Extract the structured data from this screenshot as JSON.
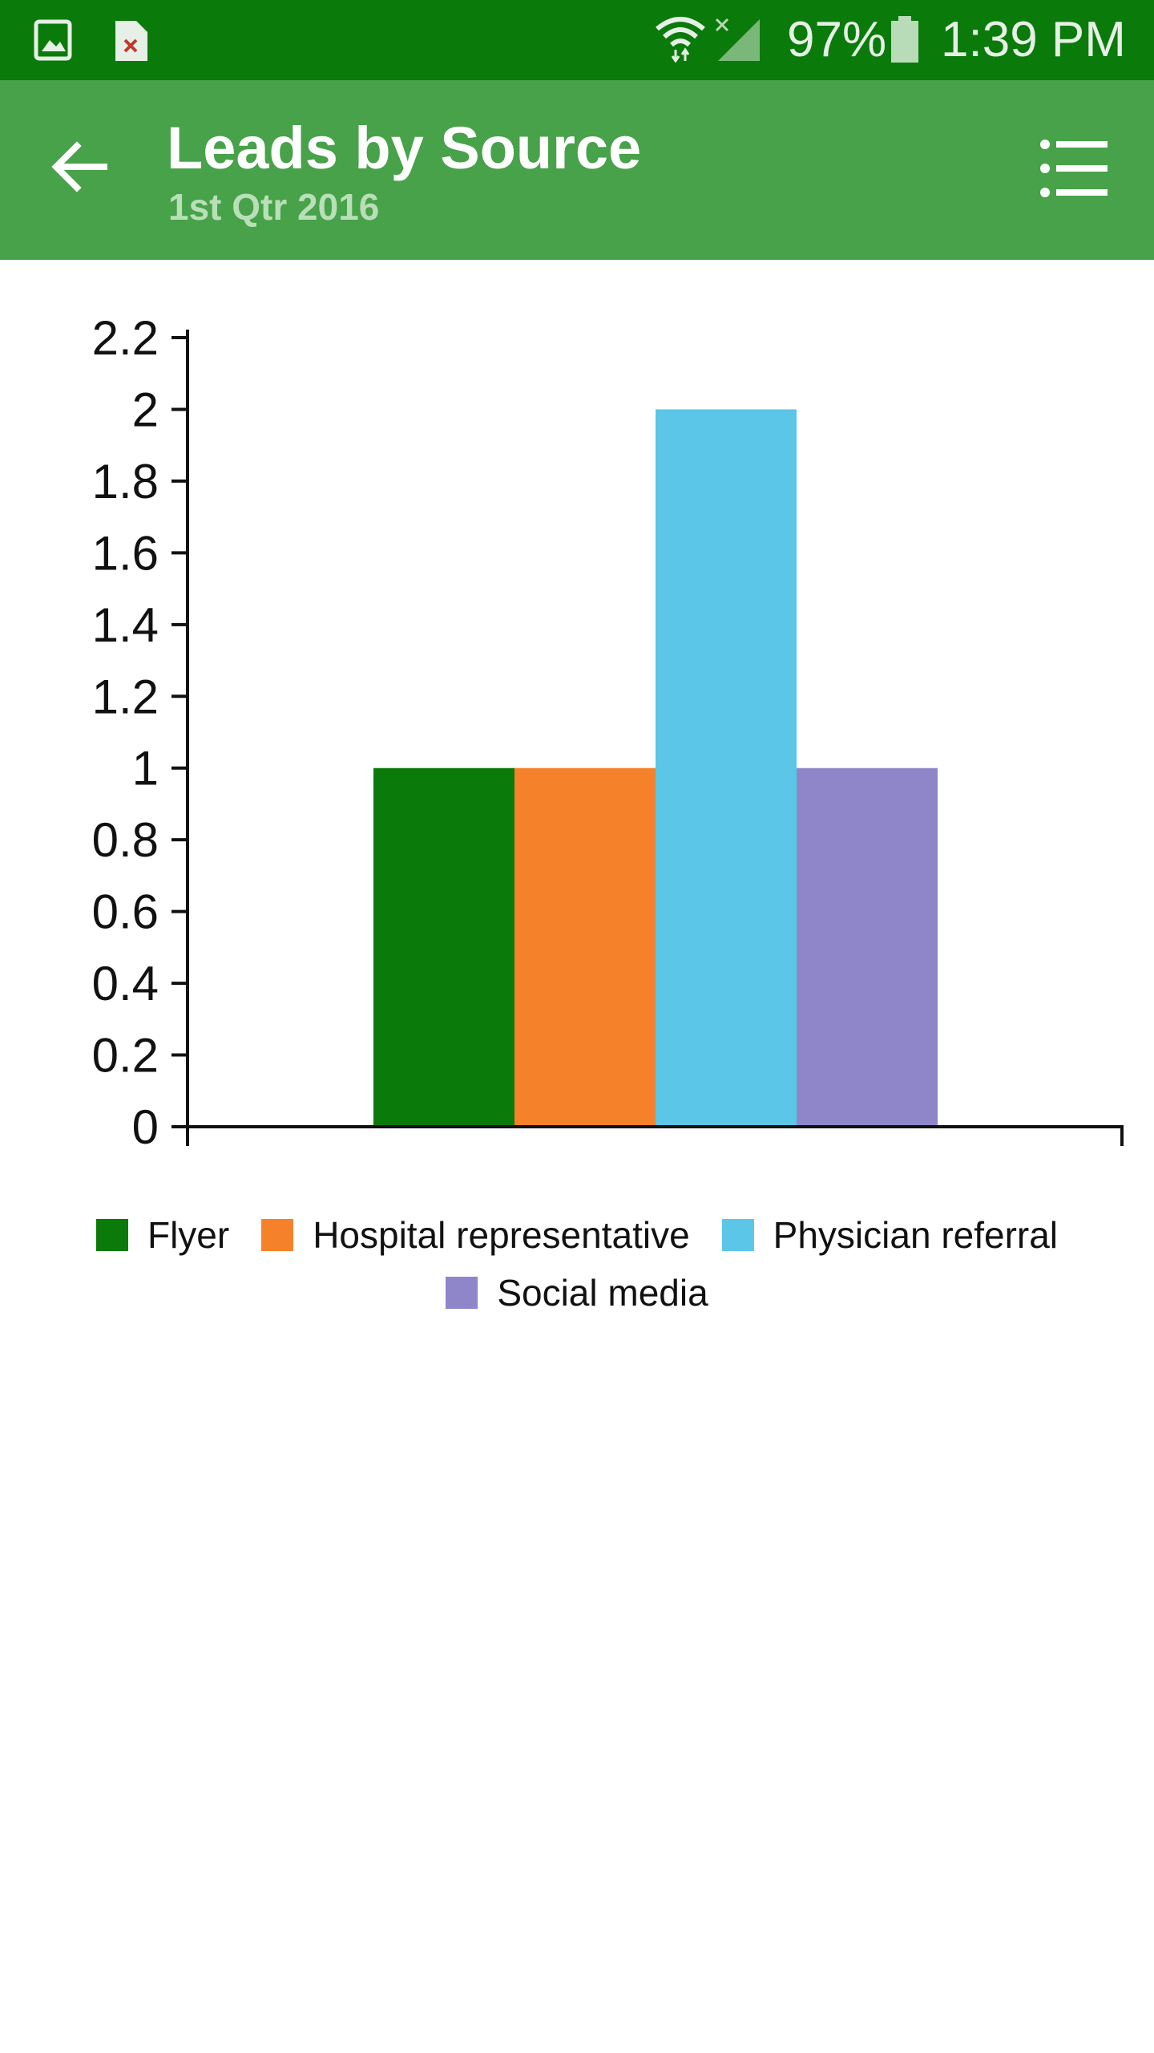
{
  "status_bar": {
    "battery": "97%",
    "time": "1:39 PM",
    "icons": [
      "image-icon",
      "document-error-icon",
      "wifi-icon",
      "no-signal-icon",
      "battery-icon"
    ]
  },
  "app_bar": {
    "title": "Leads by Source",
    "subtitle": "1st Qtr 2016",
    "back_icon": "arrow-left-icon",
    "menu_icon": "list-icon"
  },
  "colors": {
    "status_bar": "#0a7a0a",
    "app_bar": "#47a249",
    "flyer": "#0a7a0a",
    "hospital_representative": "#f5822a",
    "physician_referral": "#5bc6e8",
    "social_media": "#8e86c8"
  },
  "chart_data": {
    "type": "bar",
    "title": "",
    "xlabel": "",
    "ylabel": "",
    "ylim": [
      0,
      2.2
    ],
    "yticks": [
      "0",
      "0.2",
      "0.4",
      "0.6",
      "0.8",
      "1",
      "1.2",
      "1.4",
      "1.6",
      "1.8",
      "2",
      "2.2"
    ],
    "categories": [
      ""
    ],
    "series": [
      {
        "name": "Flyer",
        "values": [
          1
        ],
        "color": "#0a7a0a"
      },
      {
        "name": "Hospital representative",
        "values": [
          1
        ],
        "color": "#f5822a"
      },
      {
        "name": "Physician referral",
        "values": [
          2
        ],
        "color": "#5bc6e8"
      },
      {
        "name": "Social media",
        "values": [
          1
        ],
        "color": "#8e86c8"
      }
    ],
    "legend": "bottom"
  }
}
